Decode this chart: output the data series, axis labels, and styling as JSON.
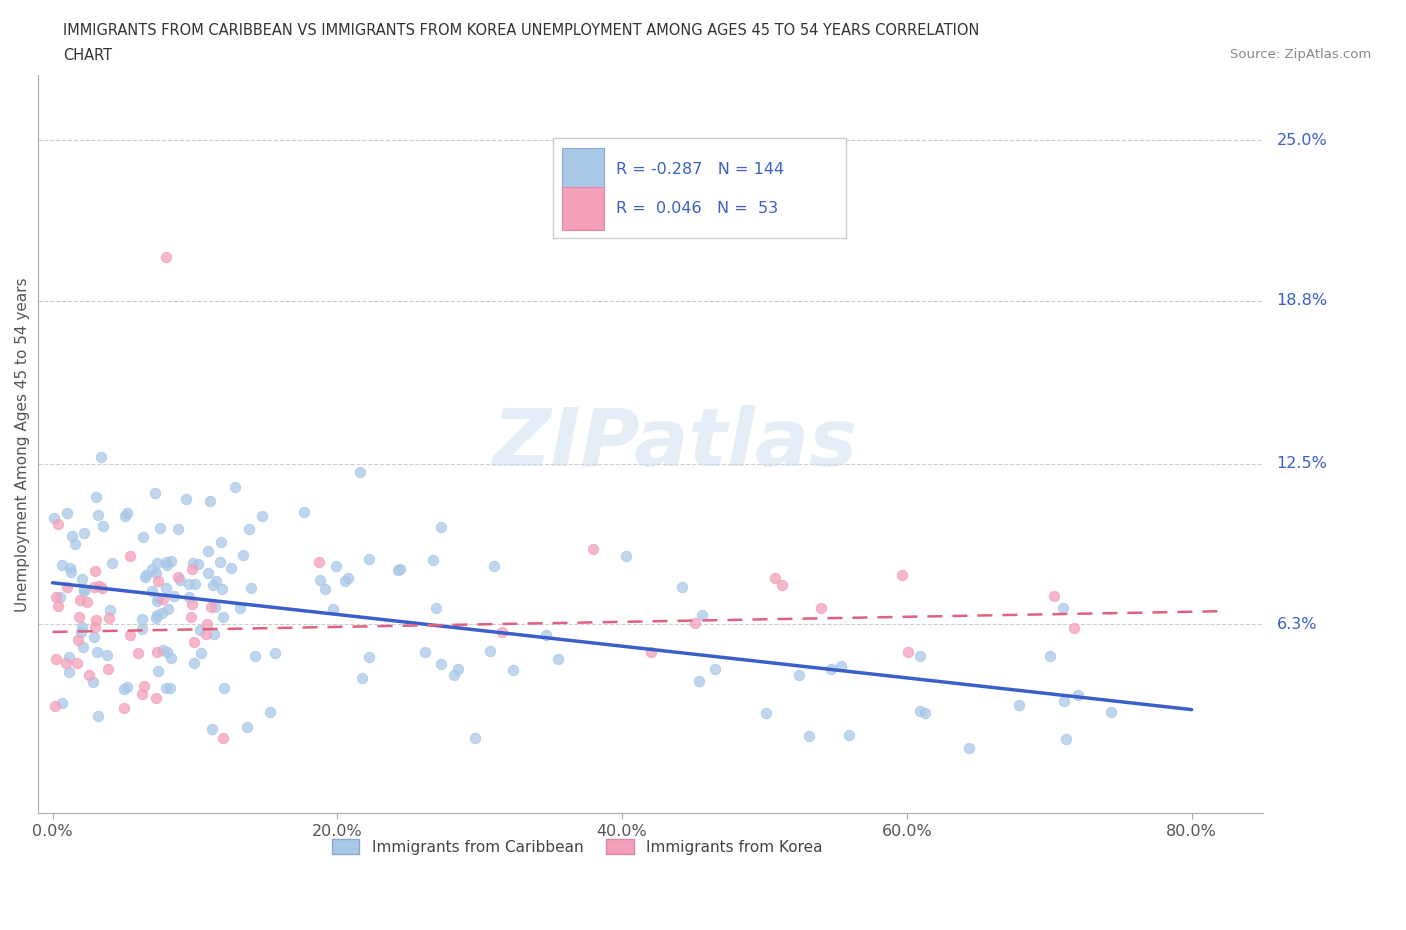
{
  "title_line1": "IMMIGRANTS FROM CARIBBEAN VS IMMIGRANTS FROM KOREA UNEMPLOYMENT AMONG AGES 45 TO 54 YEARS CORRELATION",
  "title_line2": "CHART",
  "source_text": "Source: ZipAtlas.com",
  "ylabel": "Unemployment Among Ages 45 to 54 years",
  "xlabel_ticks": [
    "0.0%",
    "20.0%",
    "40.0%",
    "60.0%",
    "80.0%"
  ],
  "xlabel_vals": [
    0.0,
    0.2,
    0.4,
    0.6,
    0.8
  ],
  "ylabel_ticks": [
    "6.3%",
    "12.5%",
    "18.8%",
    "25.0%"
  ],
  "ylabel_vals": [
    0.063,
    0.125,
    0.188,
    0.25
  ],
  "xlim": [
    -0.01,
    0.85
  ],
  "ylim": [
    -0.01,
    0.275
  ],
  "caribbean_color": "#a8c8e8",
  "korea_color": "#f4a0b8",
  "caribbean_line_color": "#3a5fc8",
  "korea_line_color": "#e06080",
  "R_caribbean": -0.287,
  "N_caribbean": 144,
  "R_korea": 0.046,
  "N_korea": 53,
  "watermark_text": "ZIPatlas",
  "grid_color": "#c8c8c8",
  "background_color": "#ffffff",
  "title_color": "#333333",
  "tick_color": "#555555",
  "right_label_color": "#3a5fc8",
  "legend_label_caribbean": "Immigrants from Caribbean",
  "legend_label_korea": "Immigrants from Korea"
}
